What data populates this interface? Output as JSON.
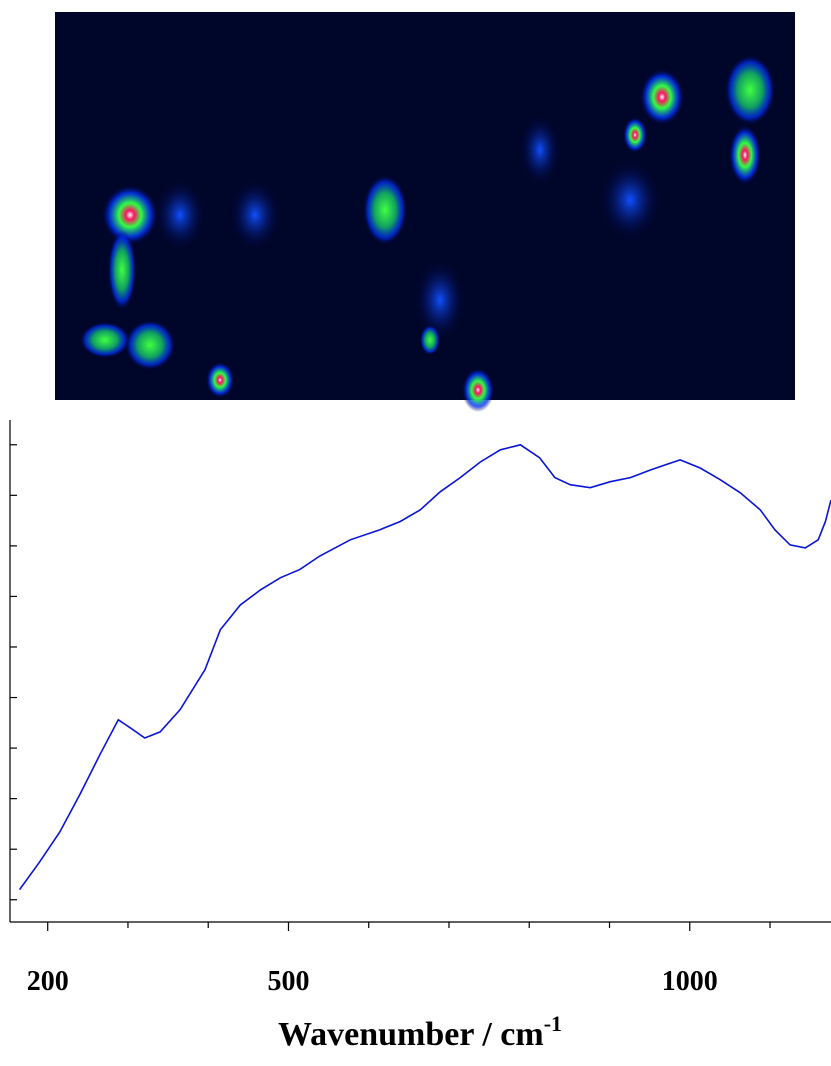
{
  "chart_data": {
    "type": "line",
    "x_label": {
      "text": "Wavenumber / cm",
      "sup": "-1"
    },
    "x": [
      165,
      190,
      215,
      240,
      265,
      288,
      303,
      321,
      340,
      365,
      396,
      415,
      440,
      465,
      490,
      514,
      539,
      577,
      614,
      639,
      664,
      689,
      714,
      739,
      764,
      789,
      813,
      832,
      851,
      876,
      901,
      926,
      951,
      969,
      988,
      1013,
      1038,
      1063,
      1088,
      1106,
      1125,
      1144,
      1160,
      1169,
      1176
    ],
    "series": [
      {
        "color": "#0a14d8",
        "values": [
          1.2,
          1.75,
          2.34,
          3.08,
          3.87,
          4.56,
          4.4,
          4.2,
          4.32,
          4.76,
          5.55,
          6.34,
          6.83,
          7.13,
          7.37,
          7.53,
          7.8,
          8.12,
          8.32,
          8.48,
          8.71,
          9.07,
          9.35,
          9.66,
          9.9,
          10.0,
          9.74,
          9.35,
          9.21,
          9.15,
          9.27,
          9.35,
          9.5,
          9.6,
          9.7,
          9.54,
          9.31,
          9.05,
          8.71,
          8.32,
          8.02,
          7.96,
          8.12,
          8.48,
          8.91
        ]
      }
    ],
    "xlim": [
      153,
      1176
    ],
    "ylim": [
      0.56,
      10.49
    ],
    "xticks": [
      200,
      500,
      1000
    ],
    "xminor_ticks": [
      300,
      400,
      600,
      700,
      800,
      900,
      1100
    ],
    "ytick_marks": [
      1,
      2,
      3,
      4,
      5,
      6,
      7,
      8,
      9,
      10
    ],
    "grid": false
  }
}
